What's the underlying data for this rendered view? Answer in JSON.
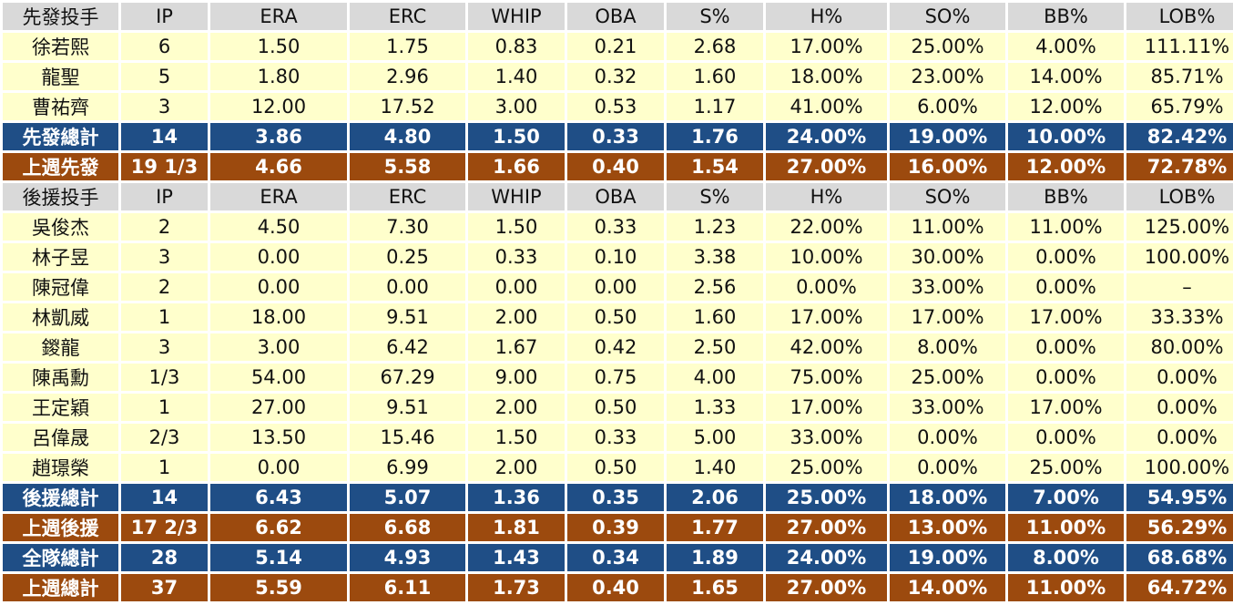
{
  "columns": [
    "IP",
    "ERA",
    "ERC",
    "WHIP",
    "OBA",
    "S%",
    "H%",
    "SO%",
    "BB%",
    "LOB%"
  ],
  "starters": {
    "header_label": "先發投手",
    "players": [
      {
        "name": "徐若熙",
        "stats": [
          "6",
          "1.50",
          "1.75",
          "0.83",
          "0.21",
          "2.68",
          "17.00%",
          "25.00%",
          "4.00%",
          "111.11%"
        ]
      },
      {
        "name": "龍聖",
        "stats": [
          "5",
          "1.80",
          "2.96",
          "1.40",
          "0.32",
          "1.60",
          "18.00%",
          "23.00%",
          "14.00%",
          "85.71%"
        ]
      },
      {
        "name": "曹祐齊",
        "stats": [
          "3",
          "12.00",
          "17.52",
          "3.00",
          "0.53",
          "1.17",
          "41.00%",
          "6.00%",
          "12.00%",
          "65.79%"
        ]
      }
    ],
    "total": {
      "name": "先發總計",
      "stats": [
        "14",
        "3.86",
        "4.80",
        "1.50",
        "0.33",
        "1.76",
        "24.00%",
        "19.00%",
        "10.00%",
        "82.42%"
      ]
    },
    "last_week": {
      "name": "上週先發",
      "stats": [
        "19 1/3",
        "4.66",
        "5.58",
        "1.66",
        "0.40",
        "1.54",
        "27.00%",
        "16.00%",
        "12.00%",
        "72.78%"
      ]
    }
  },
  "relievers": {
    "header_label": "後援投手",
    "players": [
      {
        "name": "吳俊杰",
        "stats": [
          "2",
          "4.50",
          "7.30",
          "1.50",
          "0.33",
          "1.23",
          "22.00%",
          "11.00%",
          "11.00%",
          "125.00%"
        ]
      },
      {
        "name": "林子昱",
        "stats": [
          "3",
          "0.00",
          "0.25",
          "0.33",
          "0.10",
          "3.38",
          "10.00%",
          "30.00%",
          "0.00%",
          "100.00%"
        ]
      },
      {
        "name": "陳冠偉",
        "stats": [
          "2",
          "0.00",
          "0.00",
          "0.00",
          "0.00",
          "2.56",
          "0.00%",
          "33.00%",
          "0.00%",
          "–"
        ]
      },
      {
        "name": "林凱威",
        "stats": [
          "1",
          "18.00",
          "9.51",
          "2.00",
          "0.50",
          "1.60",
          "17.00%",
          "17.00%",
          "17.00%",
          "33.33%"
        ]
      },
      {
        "name": "鍐龍",
        "stats": [
          "3",
          "3.00",
          "6.42",
          "1.67",
          "0.42",
          "2.50",
          "42.00%",
          "8.00%",
          "0.00%",
          "80.00%"
        ]
      },
      {
        "name": "陳禹勳",
        "stats": [
          "1/3",
          "54.00",
          "67.29",
          "9.00",
          "0.75",
          "4.00",
          "75.00%",
          "25.00%",
          "0.00%",
          "0.00%"
        ]
      },
      {
        "name": "王定穎",
        "stats": [
          "1",
          "27.00",
          "9.51",
          "2.00",
          "0.50",
          "1.33",
          "17.00%",
          "33.00%",
          "17.00%",
          "0.00%"
        ]
      },
      {
        "name": "呂偉晟",
        "stats": [
          "2/3",
          "13.50",
          "15.46",
          "1.50",
          "0.33",
          "5.00",
          "33.00%",
          "0.00%",
          "0.00%",
          "0.00%"
        ]
      },
      {
        "name": "趙璟榮",
        "stats": [
          "1",
          "0.00",
          "6.99",
          "2.00",
          "0.50",
          "1.40",
          "25.00%",
          "0.00%",
          "25.00%",
          "100.00%"
        ]
      }
    ],
    "total": {
      "name": "後援總計",
      "stats": [
        "14",
        "6.43",
        "5.07",
        "1.36",
        "0.35",
        "2.06",
        "25.00%",
        "18.00%",
        "7.00%",
        "54.95%"
      ]
    },
    "last_week": {
      "name": "上週後援",
      "stats": [
        "17 2/3",
        "6.62",
        "6.68",
        "1.81",
        "0.39",
        "1.77",
        "27.00%",
        "13.00%",
        "11.00%",
        "56.29%"
      ]
    }
  },
  "team_total": {
    "name": "全隊總計",
    "stats": [
      "28",
      "5.14",
      "4.93",
      "1.43",
      "0.34",
      "1.89",
      "24.00%",
      "19.00%",
      "8.00%",
      "68.68%"
    ]
  },
  "team_last_week": {
    "name": "上週總計",
    "stats": [
      "37",
      "5.59",
      "6.11",
      "1.73",
      "0.40",
      "1.65",
      "27.00%",
      "14.00%",
      "11.00%",
      "64.72%"
    ]
  },
  "colors": {
    "header_bg": "#d9d9d9",
    "player_bg": "#ffffcc",
    "total_bg": "#1f4e86",
    "last_week_bg": "#9c4a0e"
  }
}
